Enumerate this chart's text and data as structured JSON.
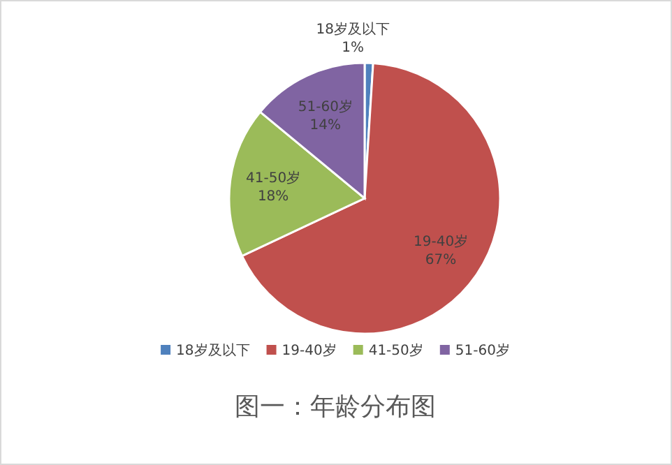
{
  "chart_data": {
    "type": "pie",
    "title": "图一：年龄分布图",
    "categories": [
      "18岁及以下",
      "19-40岁",
      "41-50岁",
      "51-60岁"
    ],
    "values": [
      1,
      67,
      18,
      14
    ],
    "value_labels": [
      "1%",
      "67%",
      "18%",
      "14%"
    ],
    "colors": [
      "#4f81bd",
      "#c0504d",
      "#9bbb59",
      "#8064a2"
    ],
    "legend": "bottom"
  }
}
